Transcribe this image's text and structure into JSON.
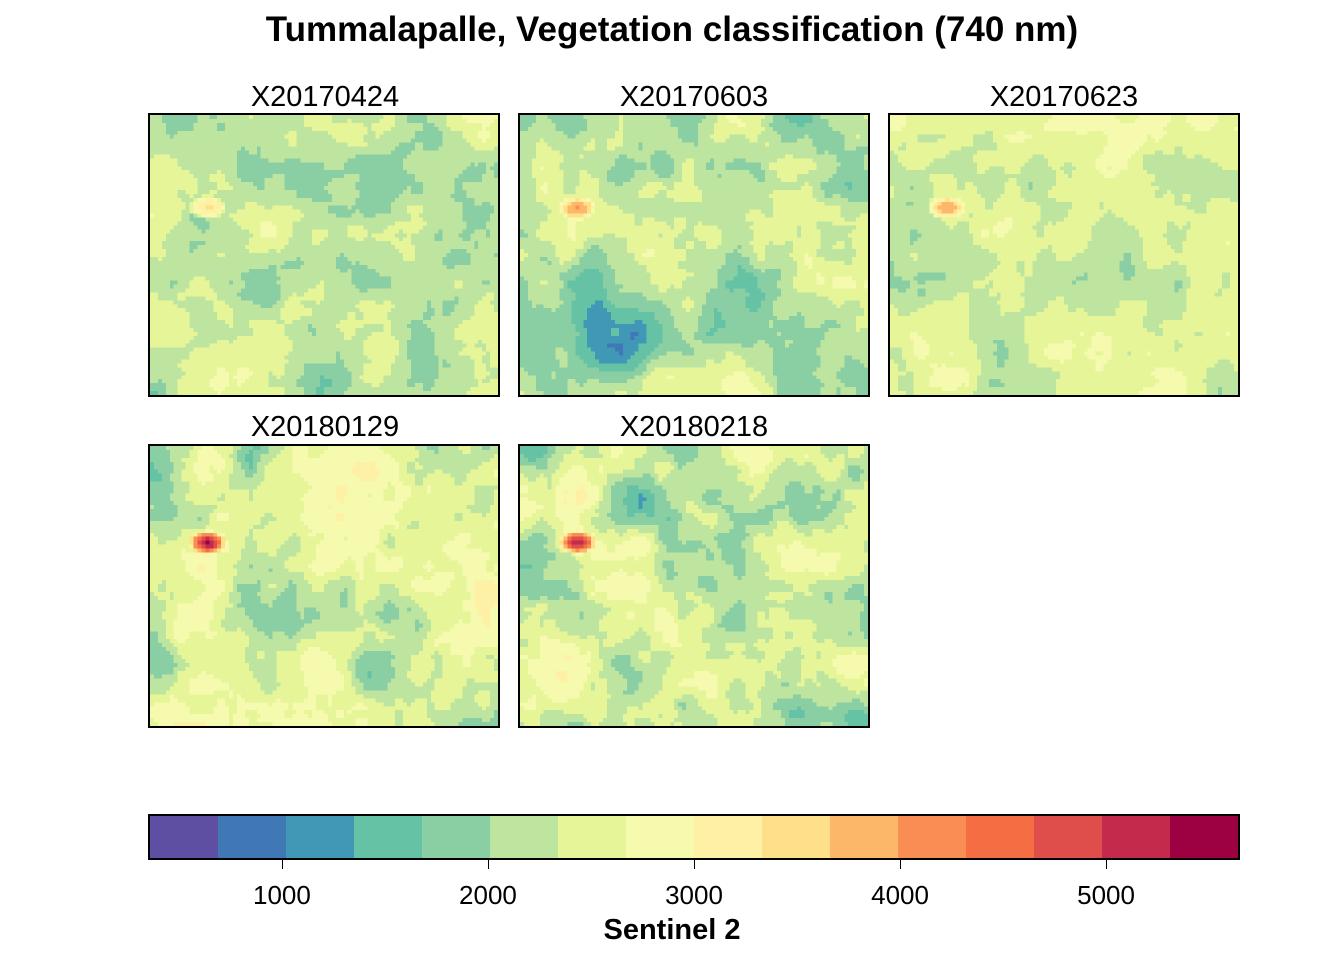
{
  "chart_data": {
    "type": "heatmap",
    "title": "Tummalapalle, Vegetation classification (740 nm)",
    "panels": [
      {
        "name": "X20170424"
      },
      {
        "name": "X20170603"
      },
      {
        "name": "X20170623"
      },
      {
        "name": "X20180129"
      },
      {
        "name": "X20180218"
      }
    ],
    "colorbar": {
      "title": "Sentinel 2",
      "range": [
        350,
        5650
      ],
      "ticks": [
        "1000",
        "2000",
        "3000",
        "4000",
        "5000"
      ],
      "palette": "Spectral (reversed)",
      "colors": [
        "#5E4FA2",
        "#3F78B5",
        "#4198B6",
        "#66C2A5",
        "#8ACFA4",
        "#BEE5A0",
        "#E6F598",
        "#F5FAAF",
        "#FEF1A5",
        "#FEE08B",
        "#FDB768",
        "#F88E53",
        "#F46D43",
        "#DF4E4B",
        "#C42A4B",
        "#9E0142"
      ]
    }
  }
}
